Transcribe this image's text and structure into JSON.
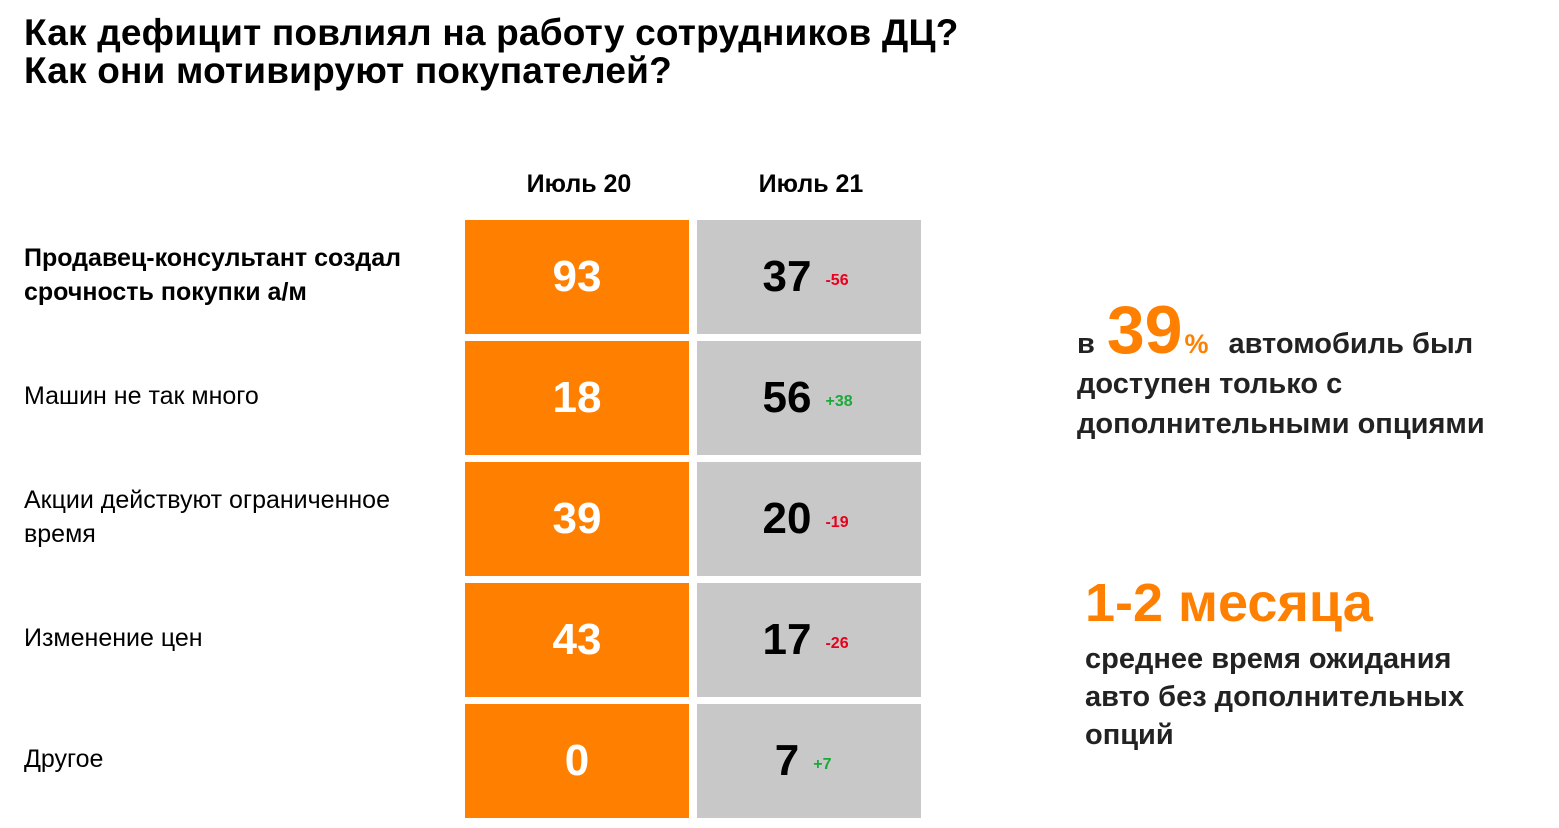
{
  "title": {
    "line1": "Как дефицит повлиял на работу сотрудников ДЦ?",
    "line2": "Как они мотивируют покупателей?"
  },
  "chart_data": {
    "type": "table",
    "columns": [
      "Июль 20",
      "Июль 21"
    ],
    "rows": [
      {
        "label": "Продавец-консультант создал срочность покупки а/м",
        "v1": 93,
        "v2": 37,
        "delta": "-56",
        "label_bold": true
      },
      {
        "label": "Машин не так много",
        "v1": 18,
        "v2": 56,
        "delta": "+38",
        "label_bold": false
      },
      {
        "label": "Акции действуют ограниченное время",
        "v1": 39,
        "v2": 20,
        "delta": "-19",
        "label_bold": false
      },
      {
        "label": "Изменение цен",
        "v1": 43,
        "v2": 17,
        "delta": "-26",
        "label_bold": false
      },
      {
        "label": "Другое",
        "v1": 0,
        "v2": 7,
        "delta": "+7",
        "label_bold": false
      }
    ],
    "colors": {
      "col1_bg": "#ff8000",
      "col2_bg": "#c8c8c8",
      "negative_delta": "#e8001c",
      "positive_delta": "#1aaa3a"
    }
  },
  "callouts": {
    "first": {
      "prefix": "в",
      "number": "39",
      "percent_sign": "%",
      "line1_rest": "автомобиль был",
      "line2": "доступен только с",
      "line3": "дополнительными опциями"
    },
    "second": {
      "headline": "1-2 месяца",
      "line1": "среднее время ожидания",
      "line2": "авто без дополнительных",
      "line3": "опций"
    }
  }
}
